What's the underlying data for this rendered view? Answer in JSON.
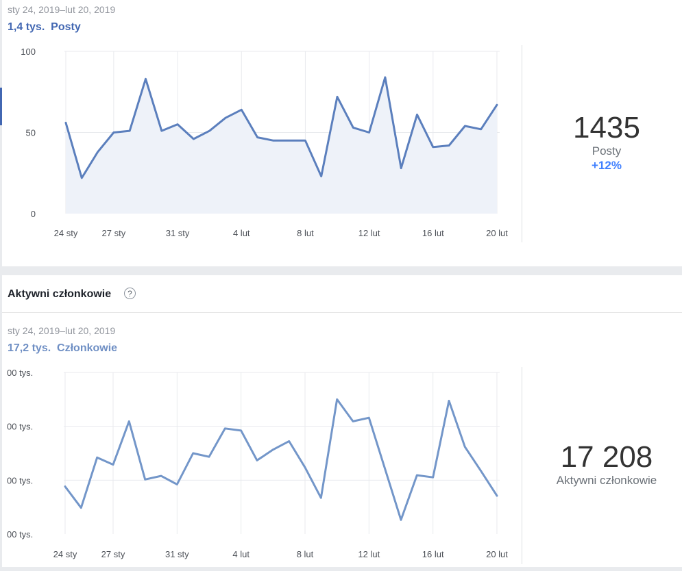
{
  "posts_panel": {
    "date_range": "sty 24, 2019–lut 20, 2019",
    "summary_value": "1,4 tys.",
    "summary_label": "Posty",
    "stat_value": "1435",
    "stat_label": "Posty",
    "stat_change": "+12%"
  },
  "members_section": {
    "title": "Aktywni członkowie",
    "help_icon": "question-mark-circle-icon",
    "date_range": "sty 24, 2019–lut 20, 2019",
    "summary_value": "17,2 tys.",
    "summary_label": "Członkowie",
    "stat_value": "17 208",
    "stat_label": "Aktywni członkowie"
  },
  "colors": {
    "line": "#5b7fbd",
    "line2": "#7396c9",
    "area": "#eef2f9",
    "grid": "#e8eaee"
  },
  "chart_data": [
    {
      "type": "area",
      "x": [
        "24 sty",
        "25 sty",
        "26 sty",
        "27 sty",
        "28 sty",
        "29 sty",
        "30 sty",
        "31 sty",
        "1 lut",
        "2 lut",
        "3 lut",
        "4 lut",
        "5 lut",
        "6 lut",
        "7 lut",
        "8 lut",
        "9 lut",
        "10 lut",
        "11 lut",
        "12 lut",
        "13 lut",
        "14 lut",
        "15 lut",
        "16 lut",
        "17 lut",
        "18 lut",
        "19 lut",
        "20 lut"
      ],
      "series": [
        {
          "values": [
            56,
            22,
            38,
            50,
            51,
            83,
            51,
            55,
            46,
            51,
            59,
            64,
            47,
            45,
            45,
            45,
            23,
            72,
            53,
            50,
            84,
            28,
            61,
            41,
            42,
            54,
            52,
            67
          ]
        }
      ],
      "xticks": [
        "24 sty",
        "27 sty",
        "31 sty",
        "4 lut",
        "8 lut",
        "12 lut",
        "16 lut",
        "20 lut"
      ],
      "yticks": [
        "0",
        "50",
        "100"
      ],
      "ylim": [
        0,
        100
      ],
      "grid": true
    },
    {
      "type": "line",
      "x": [
        "24 sty",
        "25 sty",
        "26 sty",
        "27 sty",
        "28 sty",
        "29 sty",
        "30 sty",
        "31 sty",
        "1 lut",
        "2 lut",
        "3 lut",
        "4 lut",
        "5 lut",
        "6 lut",
        "7 lut",
        "8 lut",
        "9 lut",
        "10 lut",
        "11 lut",
        "12 lut",
        "13 lut",
        "14 lut",
        "15 lut",
        "16 lut",
        "17 lut",
        "18 lut",
        "19 lut",
        "20 lut"
      ],
      "series": [
        {
          "values": [
            0.97,
            0.67,
            1.38,
            1.28,
            1.89,
            1.07,
            1.12,
            1.0,
            1.44,
            1.39,
            1.79,
            1.76,
            1.34,
            1.49,
            1.61,
            1.24,
            0.81,
            2.2,
            1.89,
            1.94,
            1.22,
            0.5,
            1.13,
            1.1,
            2.18,
            1.53,
            1.19,
            0.84
          ]
        }
      ],
      "xticks": [
        "24 sty",
        "27 sty",
        "31 sty",
        "4 lut",
        "8 lut",
        "12 lut",
        "16 lut",
        "20 lut"
      ],
      "yticks": [
        "00 tys.",
        "00 tys.",
        "00 tys.",
        "00 tys."
      ],
      "grid": true
    }
  ]
}
